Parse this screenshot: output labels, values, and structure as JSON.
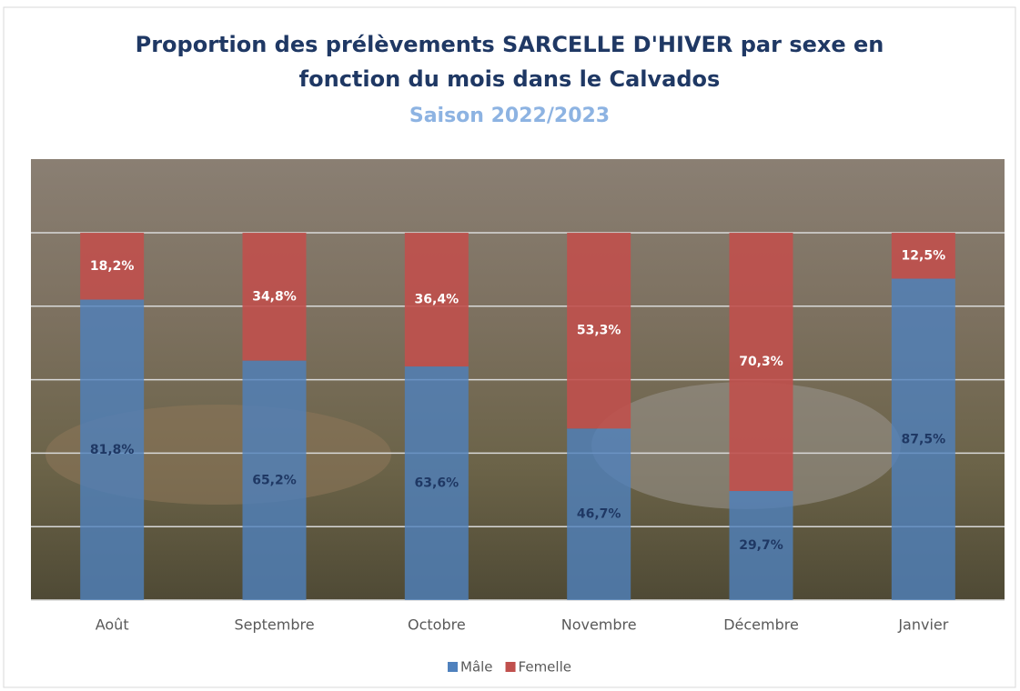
{
  "chart_data": {
    "type": "stacked_bar_100",
    "title": "Proportion des prélèvements SARCELLE D'HIVER par sexe en fonction du mois dans le Calvados",
    "subtitle": "Saison 2022/2023",
    "categories": [
      "Août",
      "Septembre",
      "Octobre",
      "Novembre",
      "Décembre",
      "Janvier"
    ],
    "series": [
      {
        "name": "Mâle",
        "color": "#4f81bd",
        "values": [
          81.8,
          65.2,
          63.6,
          46.7,
          29.7,
          87.5
        ],
        "value_labels": [
          "81,8%",
          "65,2%",
          "63,6%",
          "46,7%",
          "29,7%",
          "87,5%"
        ]
      },
      {
        "name": "Femelle",
        "color": "#c0504d",
        "values": [
          18.2,
          34.8,
          36.4,
          53.3,
          70.3,
          12.5
        ],
        "value_labels": [
          "18,2%",
          "34,8%",
          "36,4%",
          "53,3%",
          "70,3%",
          "12,5%"
        ]
      }
    ],
    "ylim": [
      0,
      100
    ],
    "yticks": [
      0,
      20,
      40,
      60,
      80,
      100
    ],
    "grid": true,
    "legend": "bottom"
  }
}
